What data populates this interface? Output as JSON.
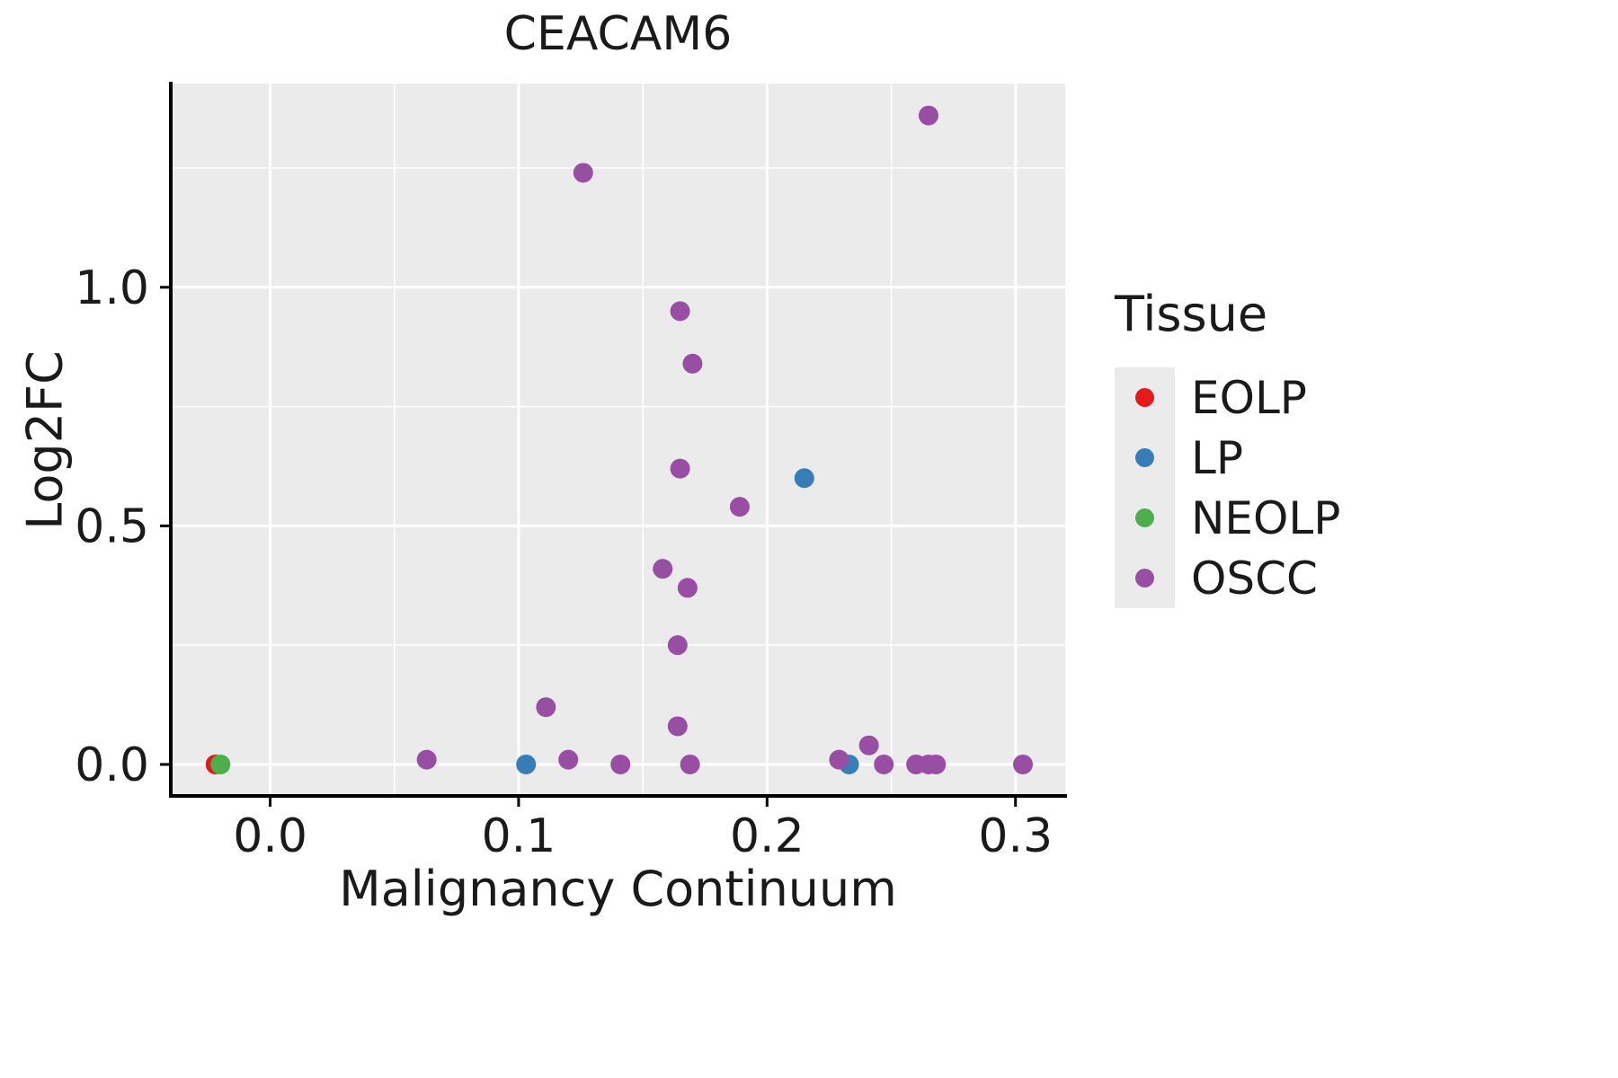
{
  "chart_data": {
    "type": "scatter",
    "title": "CEACAM6",
    "xlabel": "Malignancy Continuum",
    "ylabel": "Log2FC",
    "legend_title": "Tissue",
    "xlim": [
      -0.04,
      0.32
    ],
    "ylim": [
      -0.066,
      1.427
    ],
    "xticks": [
      0.0,
      0.1,
      0.2,
      0.3
    ],
    "xtick_labels": [
      "0.0",
      "0.1",
      "0.2",
      "0.3"
    ],
    "xminor": [
      0.05,
      0.15,
      0.25
    ],
    "yticks": [
      0.0,
      0.5,
      1.0
    ],
    "ytick_labels": [
      "0.0",
      "0.5",
      "1.0"
    ],
    "yminor": [
      0.25,
      0.75,
      1.25
    ],
    "panel_bg": "#EBEBEB",
    "grid_color": "#FFFFFF",
    "axis_color": "#000000",
    "point_radius": 11,
    "legend_position": "right",
    "grid": true,
    "series": [
      {
        "name": "EOLP",
        "color": "#E41A1C",
        "points": [
          [
            -0.022,
            0.0
          ]
        ]
      },
      {
        "name": "LP",
        "color": "#377EB8",
        "points": [
          [
            0.103,
            0.0
          ],
          [
            0.215,
            0.6
          ],
          [
            0.233,
            0.0
          ]
        ]
      },
      {
        "name": "NEOLP",
        "color": "#4DAF4A",
        "points": [
          [
            -0.02,
            0.0
          ]
        ]
      },
      {
        "name": "OSCC",
        "color": "#984EA3",
        "points": [
          [
            0.265,
            1.36
          ],
          [
            0.126,
            1.24
          ],
          [
            0.165,
            0.95
          ],
          [
            0.17,
            0.84
          ],
          [
            0.165,
            0.62
          ],
          [
            0.189,
            0.54
          ],
          [
            0.158,
            0.41
          ],
          [
            0.168,
            0.37
          ],
          [
            0.164,
            0.25
          ],
          [
            0.111,
            0.12
          ],
          [
            0.164,
            0.08
          ],
          [
            0.063,
            0.01
          ],
          [
            0.12,
            0.01
          ],
          [
            0.141,
            0.0
          ],
          [
            0.169,
            0.0
          ],
          [
            0.229,
            0.01
          ],
          [
            0.241,
            0.04
          ],
          [
            0.247,
            0.0
          ],
          [
            0.26,
            0.0
          ],
          [
            0.265,
            0.0
          ],
          [
            0.268,
            0.0
          ],
          [
            0.303,
            0.0
          ]
        ]
      }
    ]
  }
}
